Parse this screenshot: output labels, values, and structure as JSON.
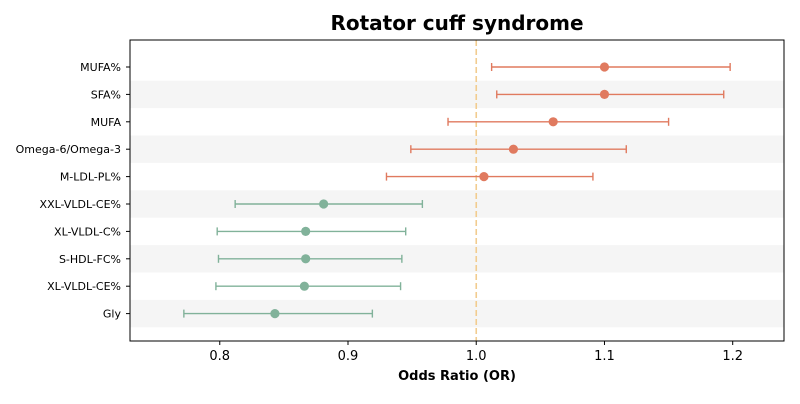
{
  "chart_data": {
    "type": "forest",
    "title": "Rotator cuff syndrome",
    "xlabel": "Odds Ratio (OR)",
    "xlim": [
      0.73,
      1.24
    ],
    "xticks": [
      0.8,
      0.9,
      1.0,
      1.1,
      1.2
    ],
    "xtick_labels": [
      "0.8",
      "0.9",
      "1.0",
      "1.1",
      "1.2"
    ],
    "reference_line": 1.0,
    "grid": false,
    "colors": {
      "positive": "#E07A5F",
      "negative": "#81B29A",
      "reference": "#F2CC8F",
      "band": "#F5F5F5"
    },
    "rows": [
      {
        "label": "MUFA%",
        "or": 1.1,
        "lower": 1.012,
        "upper": 1.198,
        "group": "positive"
      },
      {
        "label": "SFA%",
        "or": 1.1,
        "lower": 1.016,
        "upper": 1.193,
        "group": "positive"
      },
      {
        "label": "MUFA",
        "or": 1.06,
        "lower": 0.978,
        "upper": 1.15,
        "group": "positive"
      },
      {
        "label": "Omega-6/Omega-3",
        "or": 1.029,
        "lower": 0.949,
        "upper": 1.117,
        "group": "positive"
      },
      {
        "label": "M-LDL-PL%",
        "or": 1.006,
        "lower": 0.93,
        "upper": 1.091,
        "group": "positive"
      },
      {
        "label": "XXL-VLDL-CE%",
        "or": 0.881,
        "lower": 0.812,
        "upper": 0.958,
        "group": "negative"
      },
      {
        "label": "XL-VLDL-C%",
        "or": 0.867,
        "lower": 0.798,
        "upper": 0.945,
        "group": "negative"
      },
      {
        "label": "S-HDL-FC%",
        "or": 0.867,
        "lower": 0.799,
        "upper": 0.942,
        "group": "negative"
      },
      {
        "label": "XL-VLDL-CE%",
        "or": 0.866,
        "lower": 0.797,
        "upper": 0.941,
        "group": "negative"
      },
      {
        "label": "Gly",
        "or": 0.843,
        "lower": 0.772,
        "upper": 0.919,
        "group": "negative"
      }
    ]
  }
}
